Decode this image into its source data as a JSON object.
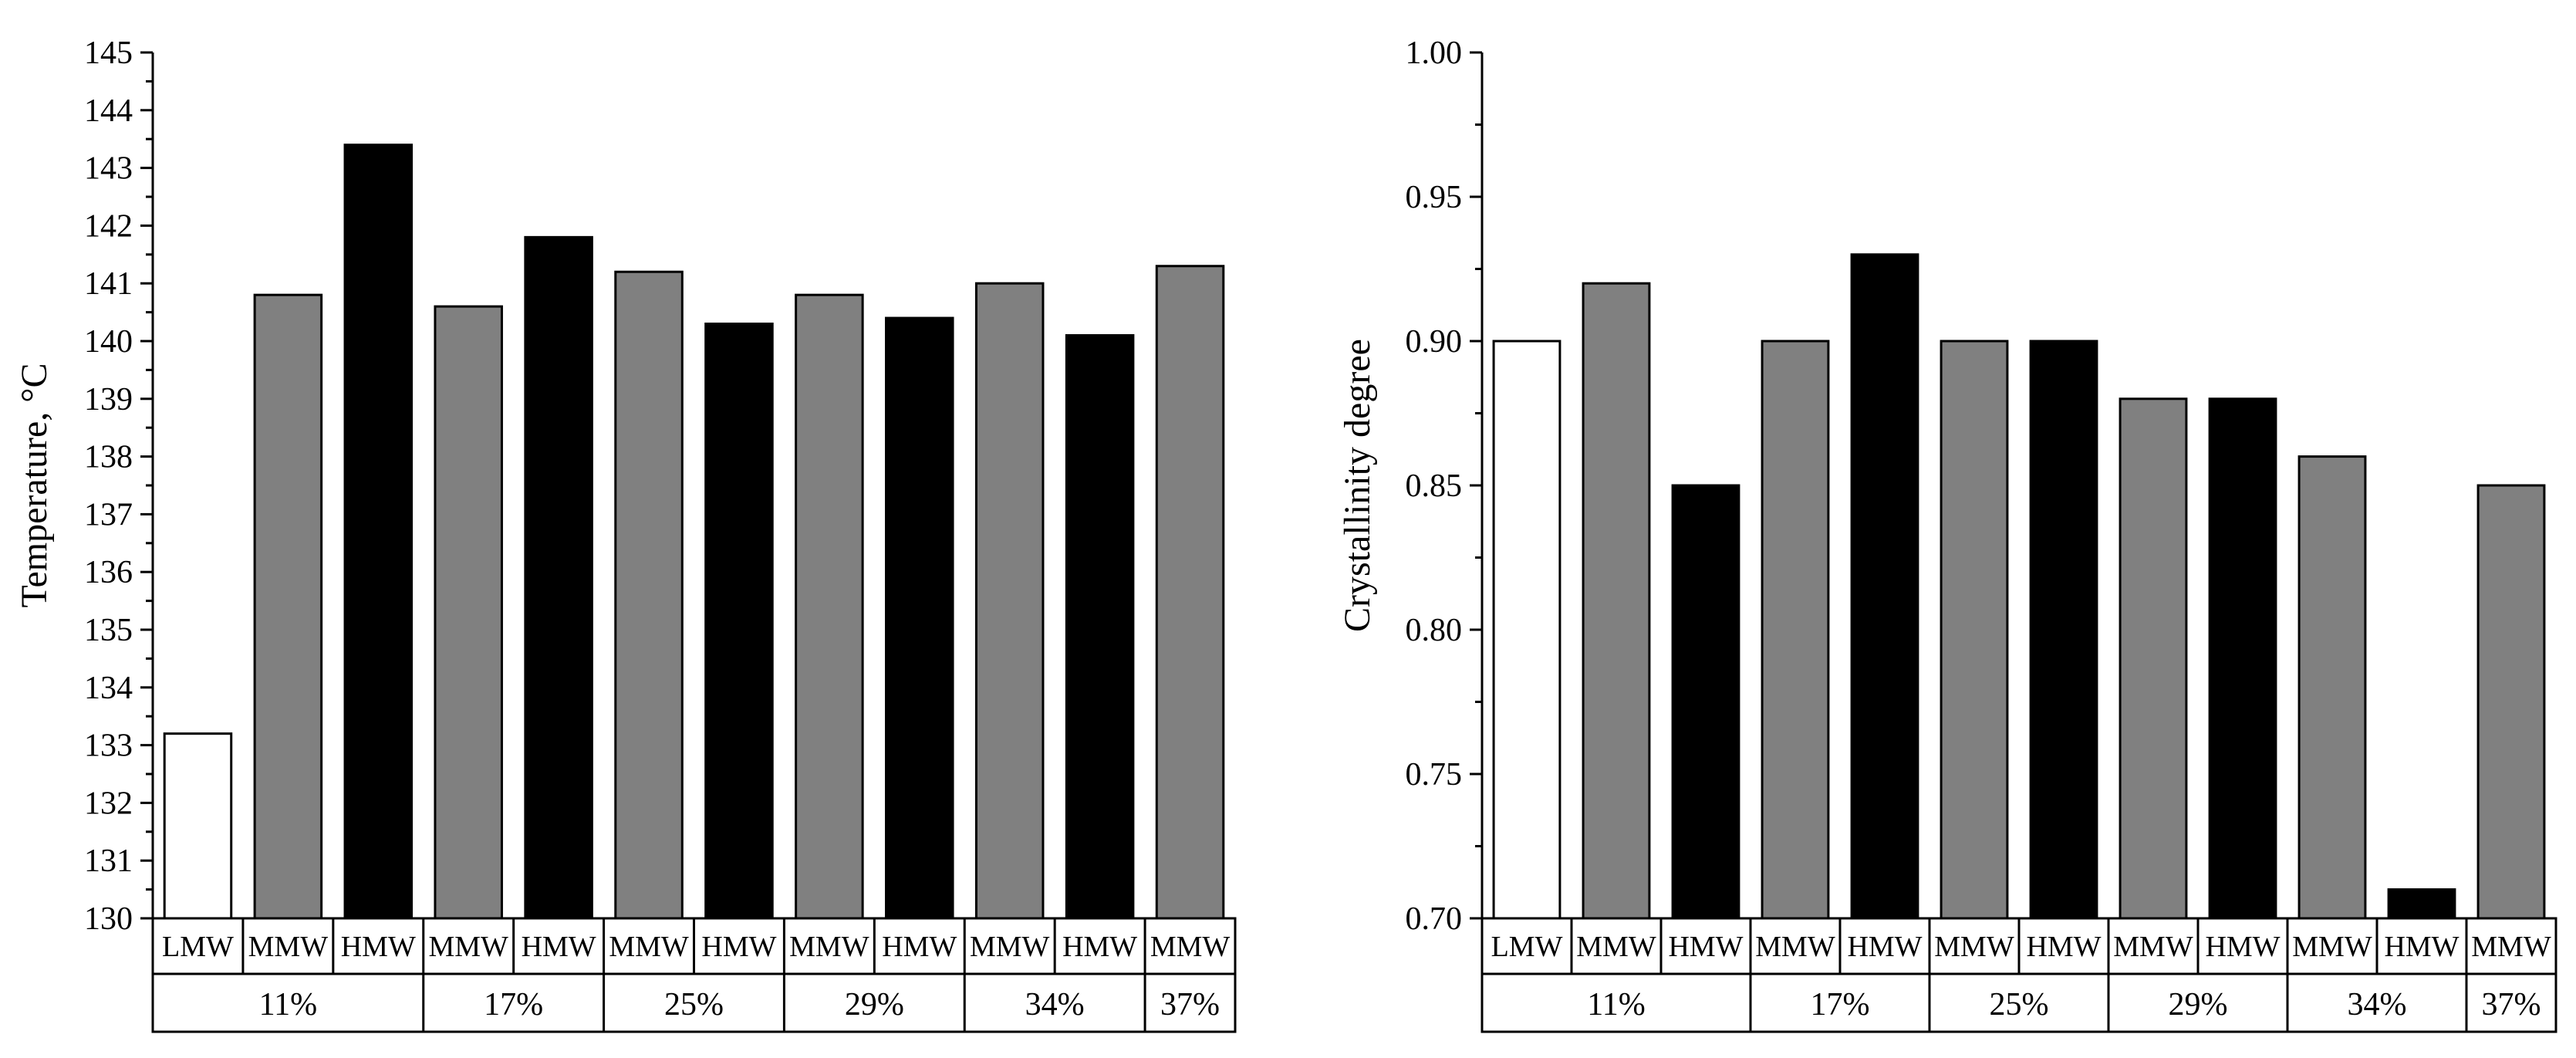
{
  "colors": {
    "LMW": "#ffffff",
    "MMW": "#808080",
    "HMW": "#000000",
    "stroke": "#000000"
  },
  "chart_data": [
    {
      "type": "bar",
      "title": "",
      "xlabel": "",
      "ylabel": "Temperature, °C",
      "ylim": [
        130,
        145
      ],
      "ytick_step": 1,
      "ytick_decimals": 0,
      "categories": [
        "LMW",
        "MMW",
        "HMW",
        "MMW",
        "HMW",
        "MMW",
        "HMW",
        "MMW",
        "HMW",
        "MMW",
        "HMW",
        "MMW"
      ],
      "values": [
        133.2,
        140.8,
        143.4,
        140.6,
        141.8,
        141.2,
        140.3,
        140.8,
        140.4,
        141.0,
        140.1,
        141.3
      ],
      "groups": [
        {
          "label": "11%",
          "span": 3
        },
        {
          "label": "17%",
          "span": 2
        },
        {
          "label": "25%",
          "span": 2
        },
        {
          "label": "29%",
          "span": 2
        },
        {
          "label": "34%",
          "span": 2
        },
        {
          "label": "37%",
          "span": 1
        }
      ]
    },
    {
      "type": "bar",
      "title": "",
      "xlabel": "",
      "ylabel": "Crystallinity degree",
      "ylim": [
        0.7,
        1.0
      ],
      "ytick_step": 0.05,
      "ytick_decimals": 2,
      "categories": [
        "LMW",
        "MMW",
        "HMW",
        "MMW",
        "HMW",
        "MMW",
        "HMW",
        "MMW",
        "HMW",
        "MMW",
        "HMW",
        "MMW"
      ],
      "values": [
        0.9,
        0.92,
        0.85,
        0.9,
        0.93,
        0.9,
        0.9,
        0.88,
        0.88,
        0.86,
        0.71,
        0.85
      ],
      "groups": [
        {
          "label": "11%",
          "span": 3
        },
        {
          "label": "17%",
          "span": 2
        },
        {
          "label": "25%",
          "span": 2
        },
        {
          "label": "29%",
          "span": 2
        },
        {
          "label": "34%",
          "span": 2
        },
        {
          "label": "37%",
          "span": 1
        }
      ]
    }
  ]
}
